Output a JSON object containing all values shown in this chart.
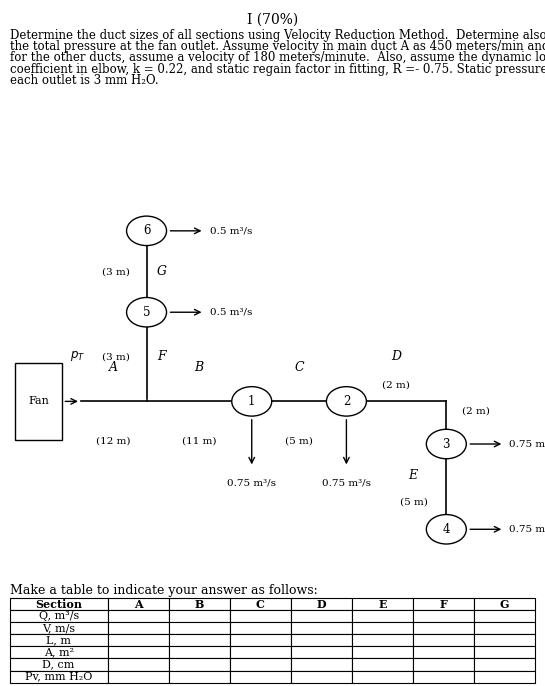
{
  "title": "I (70%)",
  "problem_text_lines": [
    "Determine the duct sizes of all sections using Velocity Reduction Method.  Determine also",
    "the total pressure at the fan outlet. Assume velocity in main duct A as 450 meters/min and",
    "for the other ducts, assume a velocity of 180 meters/minute.  Also, assume the dynamic loss",
    "coefficient in elbow, k = 0.22, and static regain factor in fitting, R =- 0.75. Static pressure at",
    "each outlet is 3 mm H₂O."
  ],
  "make_table_text": "Make a table to indicate your answer as follows:",
  "table_columns": [
    "Section",
    "A",
    "B",
    "C",
    "D",
    "E",
    "F",
    "G"
  ],
  "table_rows": [
    "Q, m³/s",
    "V, m/s",
    "L, m",
    "A, m²",
    "D, cm",
    "Pv, mm H₂O"
  ],
  "bg_color": "#c8c8c0",
  "title_fontsize": 10,
  "body_fontsize": 8.5
}
